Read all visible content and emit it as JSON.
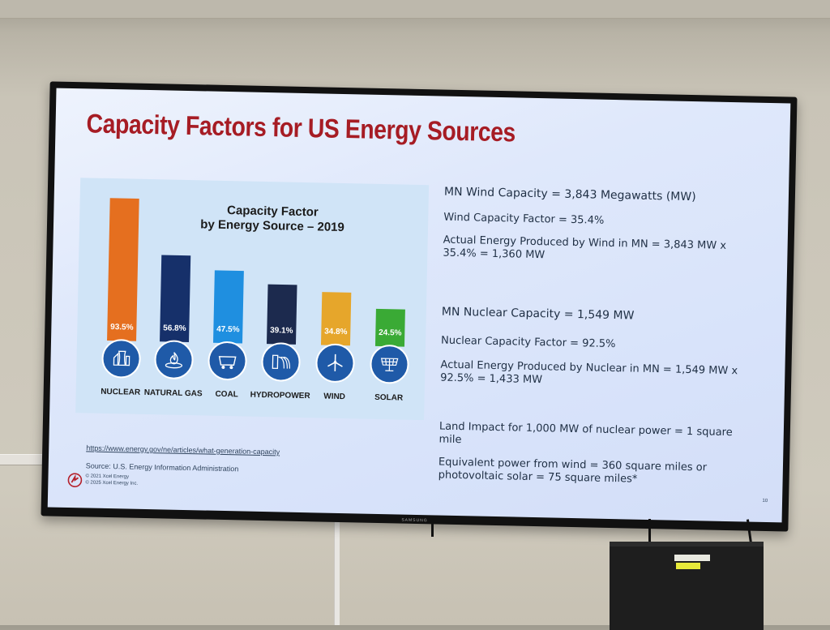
{
  "slide": {
    "title": "Capacity Factors for US Energy Sources",
    "chart_title_line1": "Capacity Factor",
    "chart_title_line2": "by Energy Source – 2019",
    "facts": [
      "MN Wind Capacity = 3,843 Megawatts (MW)",
      "Wind Capacity Factor = 35.4%",
      "Actual Energy Produced by Wind in MN = 3,843 MW x 35.4% = 1,360 MW",
      "MN Nuclear Capacity = 1,549 MW",
      "Nuclear Capacity Factor = 92.5%",
      "Actual Energy Produced by Nuclear in MN = 1,549 MW x 92.5% = 1,433 MW",
      "Land Impact for 1,000 MW of nuclear power = 1 square mile",
      "Equivalent power from wind = 360 square miles or photovoltaic solar = 75 square miles*"
    ],
    "url": "https://www.energy.gov/ne/articles/what-generation-capacity",
    "source": "Source: U.S. Energy Information Administration",
    "copyright_1": "© 2021 Xcel Energy",
    "copyright_2": "© 2025 Xcel Energy Inc.",
    "slide_number": "10",
    "tv_brand": "SAMSUNG"
  },
  "colors": {
    "title": "#a61c24",
    "icon_circle": "#1f5aa8",
    "nuclear": "#e56f1f",
    "natural_gas": "#16306a",
    "coal": "#1f8fe0",
    "hydropower": "#1c2a4e",
    "wind": "#e6a62b",
    "solar": "#3aaa35"
  },
  "chart_data": {
    "type": "bar",
    "title": "Capacity Factor by Energy Source – 2019",
    "categories": [
      "NUCLEAR",
      "NATURAL GAS",
      "COAL",
      "HYDROPOWER",
      "WIND",
      "SOLAR"
    ],
    "values": [
      93.5,
      56.8,
      47.5,
      39.1,
      34.8,
      24.5
    ],
    "value_labels": [
      "93.5%",
      "56.8%",
      "47.5%",
      "39.1%",
      "34.8%",
      "24.5%"
    ],
    "icons": [
      "nuclear-plant-icon",
      "flame-icon",
      "coal-cart-icon",
      "dam-icon",
      "wind-turbine-icon",
      "solar-panel-icon"
    ],
    "ylim": [
      0,
      100
    ],
    "grid": false,
    "legend": "none"
  }
}
